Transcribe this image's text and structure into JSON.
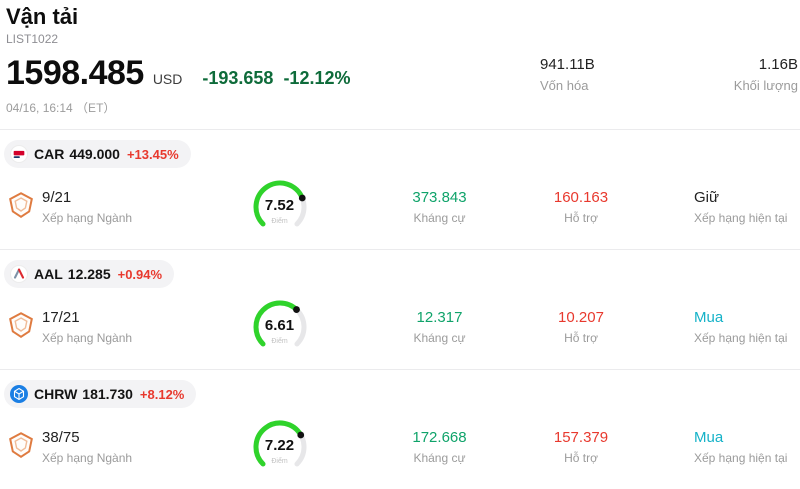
{
  "header": {
    "title": "Vận tải",
    "subtitle": "LIST1022"
  },
  "quote": {
    "price": "1598.485",
    "currency": "USD",
    "change": "-193.658",
    "change_pct": "-12.12%",
    "datetime": "04/16, 16:14 （ET）",
    "market_cap": {
      "value": "941.11B",
      "label": "Vốn hóa"
    },
    "volume": {
      "value": "1.16B",
      "label": "Khối lượng"
    }
  },
  "labels": {
    "industry_rank": "Xếp hạng Ngành",
    "score": "Điểm",
    "resistance": "Kháng cự",
    "support": "Hỗ trợ",
    "current_rating": "Xếp hạng hiện tại"
  },
  "colors": {
    "up": "#e8392e",
    "down": "#0e6b3a",
    "resistance": "#0fa36a",
    "support": "#e8392e",
    "buy": "#15b2c8",
    "hold": "#222222",
    "gauge_green": "#2fd32b",
    "gauge_track": "#e7e7e9"
  },
  "gauge": {
    "max": 10
  },
  "stocks": [
    {
      "symbol": "CAR",
      "price": "449.000",
      "change_pct": "+13.45%",
      "industry_rank": "9/21",
      "score": 7.52,
      "resistance": "373.843",
      "support": "160.163",
      "rating": "Giữ",
      "rating_type": "hold"
    },
    {
      "symbol": "AAL",
      "price": "12.285",
      "change_pct": "+0.94%",
      "industry_rank": "17/21",
      "score": 6.61,
      "resistance": "12.317",
      "support": "10.207",
      "rating": "Mua",
      "rating_type": "buy"
    },
    {
      "symbol": "CHRW",
      "price": "181.730",
      "change_pct": "+8.12%",
      "industry_rank": "38/75",
      "score": 7.22,
      "resistance": "172.668",
      "support": "157.379",
      "rating": "Mua",
      "rating_type": "buy"
    }
  ]
}
